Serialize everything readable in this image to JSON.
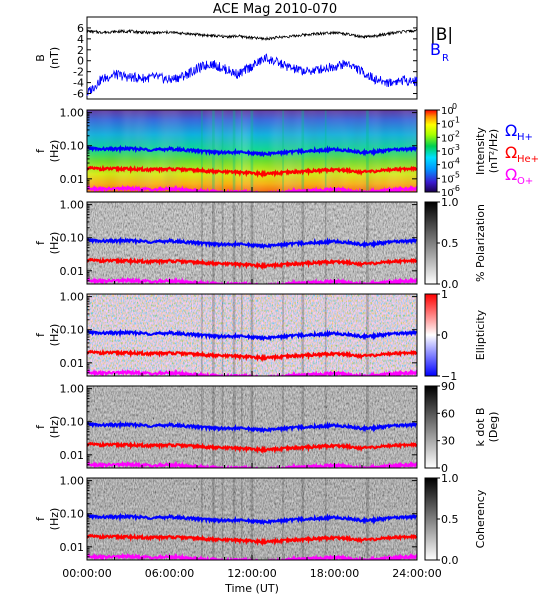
{
  "title": "ACE Mag 2010-070",
  "x_axis": {
    "label": "Time (UT)",
    "ticks": [
      "00:00:00",
      "06:00:00",
      "12:00:00",
      "18:00:00",
      "24:00:00"
    ],
    "range_hours": [
      0,
      24
    ]
  },
  "panels": [
    {
      "id": "field",
      "ylabel_line1": "B",
      "ylabel_line2": "(nT)",
      "yticks": [
        "6",
        "4",
        "2",
        "0",
        "-2",
        "-4",
        "-6"
      ],
      "legend": [
        {
          "label": "|B|",
          "color": "#000000"
        },
        {
          "label": "B",
          "sub": "R",
          "color": "#0000ff"
        }
      ]
    },
    {
      "id": "intensity",
      "ylabel_line1": "f",
      "ylabel_line2": "(Hz)",
      "yticks": [
        "1.00",
        "0.10",
        "0.01"
      ],
      "colorbar": {
        "type": "rainbow",
        "ticks": [
          {
            "base": "10",
            "exp": "0"
          },
          {
            "base": "10",
            "exp": "-1"
          },
          {
            "base": "10",
            "exp": "-2"
          },
          {
            "base": "10",
            "exp": "-3"
          },
          {
            "base": "10",
            "exp": "-4"
          },
          {
            "base": "10",
            "exp": "-5"
          },
          {
            "base": "10",
            "exp": "-6"
          }
        ],
        "label": "Intensity",
        "unit": "(nT²/Hz)"
      },
      "gyro_legend": [
        {
          "symbol": "Ω",
          "sub": "H+",
          "color": "#0000ff"
        },
        {
          "symbol": "Ω",
          "sub": "He+",
          "color": "#ff0000"
        },
        {
          "symbol": "Ω",
          "sub": "O+",
          "color": "#ff00ff"
        }
      ]
    },
    {
      "id": "polarization",
      "ylabel_line1": "f",
      "ylabel_line2": "(Hz)",
      "yticks": [
        "1.00",
        "0.10",
        "0.01"
      ],
      "colorbar": {
        "type": "gray",
        "ticks": [
          "1.0",
          "0.5",
          "0.0"
        ],
        "label": "% Polarization",
        "unit": ""
      }
    },
    {
      "id": "ellipticity",
      "ylabel_line1": "f",
      "ylabel_line2": "(Hz)",
      "yticks": [
        "1.00",
        "0.10",
        "0.01"
      ],
      "colorbar": {
        "type": "bwr",
        "ticks": [
          "1",
          "0",
          "−1"
        ],
        "label": "Ellipticity",
        "unit": ""
      }
    },
    {
      "id": "kdotb",
      "ylabel_line1": "f",
      "ylabel_line2": "(Hz)",
      "yticks": [
        "1.00",
        "0.10",
        "0.01"
      ],
      "colorbar": {
        "type": "gray",
        "ticks": [
          "90",
          "60",
          "30",
          "0"
        ],
        "label": "k dot B",
        "unit": "(Deg)"
      }
    },
    {
      "id": "coherency",
      "ylabel_line1": "f",
      "ylabel_line2": "(Hz)",
      "yticks": [
        "1.00",
        "0.10",
        "0.01"
      ],
      "colorbar": {
        "type": "gray",
        "ticks": [
          "1.0",
          "0.5",
          "0.0"
        ],
        "label": "Coherency",
        "unit": ""
      }
    }
  ],
  "chart_data": {
    "type": "line",
    "title": "ACE Mag 2010-070",
    "xlabel": "Time (UT)",
    "x_hours": [
      0,
      1,
      2,
      3,
      4,
      5,
      6,
      7,
      8,
      9,
      10,
      11,
      12,
      13,
      14,
      15,
      16,
      17,
      18,
      19,
      20,
      21,
      22,
      23,
      24
    ],
    "field_series": [
      {
        "name": "|B|",
        "ylabel": "B (nT)",
        "ylim": [
          -7,
          8
        ],
        "values": [
          5.4,
          5.2,
          5.3,
          5.4,
          5.2,
          5.1,
          5.2,
          5.0,
          4.8,
          4.6,
          4.4,
          4.5,
          4.2,
          4.0,
          4.3,
          4.5,
          4.8,
          5.0,
          5.2,
          4.8,
          4.3,
          4.5,
          5.0,
          5.3,
          5.5
        ]
      },
      {
        "name": "Bʀ",
        "ylabel": "B (nT)",
        "ylim": [
          -7,
          8
        ],
        "values": [
          -6.0,
          -3.5,
          -2.5,
          -3.0,
          -3.2,
          -3.0,
          -3.5,
          -2.8,
          -1.5,
          -0.5,
          -1.5,
          -2.5,
          -1.0,
          0.5,
          -0.5,
          -1.5,
          -2.0,
          -1.5,
          -1.0,
          -0.5,
          -2.0,
          -3.5,
          -4.0,
          -3.5,
          -3.8
        ]
      }
    ],
    "gyrofrequency_series_hz": [
      {
        "name": "ΩH+",
        "color": "#0000ff",
        "values": [
          0.085,
          0.078,
          0.08,
          0.082,
          0.078,
          0.075,
          0.08,
          0.075,
          0.07,
          0.066,
          0.062,
          0.064,
          0.06,
          0.056,
          0.062,
          0.066,
          0.07,
          0.073,
          0.077,
          0.071,
          0.063,
          0.066,
          0.074,
          0.079,
          0.082
        ]
      },
      {
        "name": "ΩHe+",
        "color": "#ff0000",
        "values": [
          0.021,
          0.02,
          0.02,
          0.02,
          0.019,
          0.019,
          0.02,
          0.019,
          0.018,
          0.017,
          0.016,
          0.016,
          0.015,
          0.014,
          0.015,
          0.016,
          0.017,
          0.018,
          0.019,
          0.018,
          0.016,
          0.017,
          0.019,
          0.02,
          0.021
        ]
      },
      {
        "name": "ΩO+",
        "color": "#ff00ff",
        "values": [
          0.0053,
          0.0049,
          0.005,
          0.0051,
          0.0049,
          0.0047,
          0.005,
          0.0047,
          0.0044,
          0.0041,
          0.0039,
          0.004,
          0.0038,
          0.0035,
          0.0039,
          0.0041,
          0.0044,
          0.0046,
          0.0048,
          0.0044,
          0.0039,
          0.0041,
          0.0046,
          0.0049,
          0.0051
        ]
      }
    ],
    "freq_ylim_hz": [
      0.004,
      1.2
    ],
    "freq_scale": "log"
  }
}
